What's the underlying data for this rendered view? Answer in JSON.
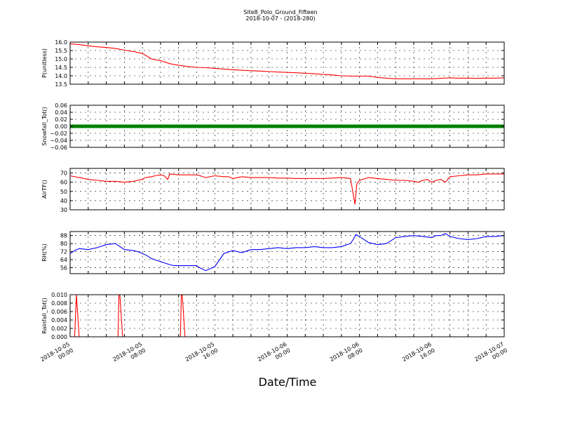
{
  "chart_data": {
    "type": "line",
    "title": "Site8_Polo_Ground_Fifteen",
    "subtitle": "2018-10-07 - (2018-280)",
    "xlabel": "Date/Time",
    "x_tick_labels": [
      [
        "2018-10-05",
        "00:00"
      ],
      [
        "2018-10-05",
        "08:00"
      ],
      [
        "2018-10-05",
        "16:00"
      ],
      [
        "2018-10-06",
        "00:00"
      ],
      [
        "2018-10-06",
        "08:00"
      ],
      [
        "2018-10-06",
        "16:00"
      ],
      [
        "2018-10-07",
        "00:00"
      ]
    ],
    "x_range_hours": [
      0,
      48
    ],
    "grid": true,
    "panels": [
      {
        "ylabel": "P(unitless)",
        "ylim": [
          13.5,
          16.0
        ],
        "yticks": [
          13.5,
          14.0,
          14.5,
          15.0,
          15.5,
          16.0
        ],
        "ytick_labels": [
          "13.5",
          "14.0",
          "14.5",
          "15.0",
          "15.5",
          "16.0"
        ],
        "color": "#ff0000",
        "x": [
          0,
          1,
          2,
          3,
          4,
          5,
          6,
          7,
          8,
          9,
          10,
          11,
          12,
          13,
          14,
          15,
          16,
          17,
          18,
          19,
          20,
          21,
          22,
          23,
          24,
          25,
          26,
          27,
          28,
          29,
          30,
          31,
          32,
          33,
          34,
          35,
          36,
          37,
          38,
          39,
          40,
          41,
          42,
          43,
          44,
          45,
          46,
          47,
          48
        ],
        "values": [
          15.9,
          15.85,
          15.78,
          15.72,
          15.68,
          15.62,
          15.52,
          15.44,
          15.32,
          15.0,
          14.9,
          14.72,
          14.62,
          14.55,
          14.5,
          14.48,
          14.44,
          14.4,
          14.36,
          14.33,
          14.3,
          14.28,
          14.25,
          14.22,
          14.2,
          14.18,
          14.15,
          14.12,
          14.08,
          14.05,
          14.0,
          13.98,
          13.98,
          13.98,
          13.9,
          13.86,
          13.82,
          13.82,
          13.82,
          13.82,
          13.82,
          13.85,
          13.88,
          13.86,
          13.86,
          13.85,
          13.86,
          13.86,
          13.88
        ]
      },
      {
        "ylabel": "Snowfall_Tot()",
        "ylim": [
          -0.06,
          0.06
        ],
        "yticks": [
          -0.06,
          -0.04,
          -0.02,
          0.0,
          0.02,
          0.04,
          0.06
        ],
        "ytick_labels": [
          "−0.06",
          "−0.04",
          "−0.02",
          "0.00",
          "0.02",
          "0.04",
          "0.06"
        ],
        "color": "#008000",
        "x": [
          0,
          48
        ],
        "values": [
          0.0,
          0.0
        ]
      },
      {
        "ylabel": "AirTF()",
        "ylim": [
          30,
          75
        ],
        "yticks": [
          30,
          40,
          50,
          60,
          70
        ],
        "ytick_labels": [
          "30",
          "40",
          "50",
          "60",
          "70"
        ],
        "color": "#ff0000",
        "x": [
          0,
          1,
          2,
          3,
          4,
          5,
          6,
          7,
          7.5,
          8,
          8.3,
          9,
          9.4,
          10,
          10.4,
          10.8,
          11,
          12,
          13,
          14,
          14.4,
          15,
          16,
          17,
          17.5,
          18,
          19,
          20,
          21,
          22,
          23,
          24,
          25,
          26,
          27,
          28,
          29,
          30,
          31,
          31.5,
          31.7,
          32,
          33,
          34,
          35,
          36,
          37,
          38,
          38.5,
          39,
          39.5,
          40,
          40.5,
          41,
          41.5,
          42,
          43,
          44,
          45,
          46,
          47,
          48
        ],
        "values": [
          67,
          65,
          63,
          62,
          61,
          61,
          60,
          61,
          62,
          63,
          65,
          66,
          67,
          68,
          67,
          63,
          69,
          68,
          68,
          68,
          67,
          65,
          67,
          66,
          66,
          64,
          66,
          65,
          65,
          65,
          64.5,
          64.5,
          64,
          64,
          64,
          64,
          64.5,
          65,
          64,
          36,
          58,
          62,
          65,
          64,
          63,
          62,
          62,
          61,
          60,
          62,
          63,
          60,
          62,
          63,
          60,
          66,
          67,
          68,
          68,
          69,
          69,
          69
        ]
      },
      {
        "ylabel": "RH(%)",
        "ylim": [
          50,
          92
        ],
        "yticks": [
          56,
          64,
          72,
          80,
          88
        ],
        "ytick_labels": [
          "56",
          "64",
          "72",
          "80",
          "88"
        ],
        "color": "#0000ff",
        "x": [
          0,
          0.5,
          1,
          2,
          3,
          4,
          5,
          6,
          7,
          7.5,
          8,
          8.5,
          9,
          10,
          11,
          11.5,
          12,
          13,
          14,
          14.3,
          15,
          16,
          17,
          18,
          19,
          20,
          21,
          22,
          23,
          24,
          25,
          26,
          27,
          28,
          29,
          30,
          31,
          31.3,
          31.6,
          32,
          33,
          34,
          35,
          36,
          37,
          38,
          39,
          40,
          40.5,
          41,
          41.5,
          42,
          43,
          44,
          45,
          46,
          47,
          48
        ],
        "values": [
          70,
          73,
          75,
          74,
          76,
          79,
          80,
          74,
          73,
          72,
          70,
          68,
          65,
          62,
          59,
          58,
          58,
          58,
          58,
          56,
          53,
          57,
          70,
          73,
          71,
          74,
          74,
          75,
          76,
          75,
          76,
          76,
          77,
          76,
          76,
          77,
          80,
          84,
          89,
          87,
          81,
          79,
          80,
          86,
          87,
          88,
          87,
          86,
          88,
          88,
          90,
          87,
          85,
          84,
          85,
          87,
          87,
          88
        ]
      },
      {
        "ylabel": "Rainfall_Tot()",
        "ylim": [
          0,
          0.01
        ],
        "yticks": [
          0.0,
          0.002,
          0.004,
          0.006,
          0.008,
          0.01
        ],
        "ytick_labels": [
          "0.000",
          "0.002",
          "0.004",
          "0.006",
          "0.008",
          "0.010"
        ],
        "color": "#ff0000",
        "x": [
          0,
          0.5,
          0.7,
          1.0,
          5,
          5.3,
          5.4,
          5.5,
          5.8,
          12,
          12.2,
          12.3,
          12.4,
          12.7,
          48
        ],
        "values": [
          0,
          0,
          0.01,
          0,
          0,
          0,
          0.01,
          0.01,
          0,
          0,
          0,
          0.01,
          0.01,
          0,
          0
        ]
      }
    ]
  }
}
